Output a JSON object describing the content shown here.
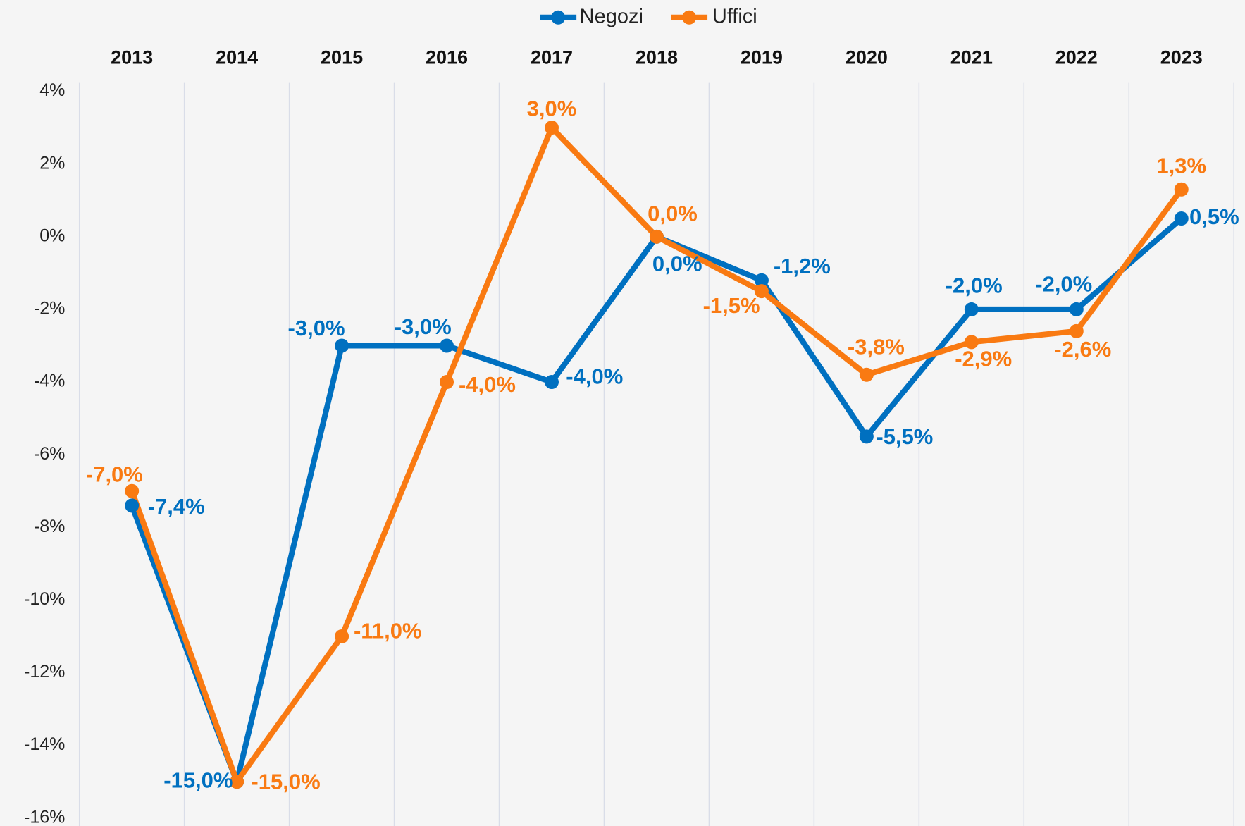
{
  "chart_data": {
    "type": "line",
    "categories": [
      "2013",
      "2014",
      "2015",
      "2016",
      "2017",
      "2018",
      "2019",
      "2020",
      "2021",
      "2022",
      "2023"
    ],
    "series": [
      {
        "name": "Negozi",
        "color": "#0070c0",
        "values": [
          -7.4,
          -15,
          -3,
          -3,
          -4,
          0,
          -1.2,
          -5.5,
          -2,
          -2,
          0.5
        ],
        "value_labels": [
          "-7,4%",
          "-15,0%",
          "-3,0%",
          "-3,0%",
          "-4,0%",
          "0,0%",
          "-1,2%",
          "-5,5%",
          "-2,0%",
          "-2,0%",
          "0,5%"
        ]
      },
      {
        "name": "Uffici",
        "color": "#f97a12",
        "values": [
          -7,
          -15,
          -11,
          -4,
          3,
          0,
          -1.5,
          -3.8,
          -2.9,
          -2.6,
          1.3
        ],
        "value_labels": [
          "-7,0%",
          "-15,0%",
          "-11,0%",
          "-4,0%",
          "3,0%",
          "0,0%",
          "-1,5%",
          "-3,8%",
          "-2,9%",
          "-2,6%",
          "1,3%"
        ]
      }
    ],
    "ylim": [
      -16,
      4
    ],
    "yticks": [
      {
        "value": 4,
        "label": "4%"
      },
      {
        "value": 2,
        "label": "2%"
      },
      {
        "value": 0,
        "label": "0%"
      },
      {
        "value": -2,
        "label": "-2%"
      },
      {
        "value": -4,
        "label": "-4%"
      },
      {
        "value": -6,
        "label": "-6%"
      },
      {
        "value": -8,
        "label": "-8%"
      },
      {
        "value": -10,
        "label": "-10%"
      },
      {
        "value": -12,
        "label": "-12%"
      },
      {
        "value": -14,
        "label": "-14%"
      },
      {
        "value": -16,
        "label": "-16%"
      }
    ],
    "legend": "top",
    "grid": true
  }
}
